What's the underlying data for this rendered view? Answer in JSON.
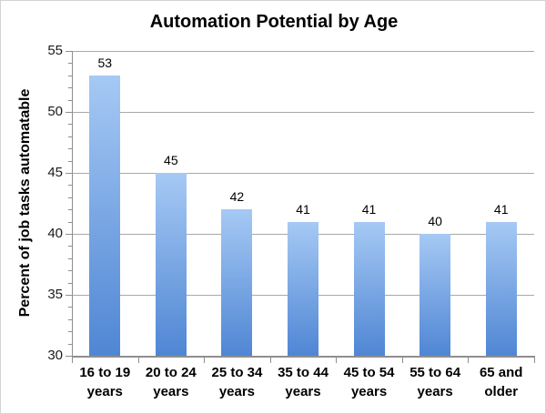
{
  "chart_data": {
    "type": "bar",
    "title": "Automation Potential by Age",
    "xlabel": "",
    "ylabel": "Percent of job tasks automatable",
    "categories": [
      "16 to 19 years",
      "20 to 24 years",
      "25 to 34 years",
      "35 to 44 years",
      "45 to 54 years",
      "55 to 64 years",
      "65 and older"
    ],
    "values": [
      53,
      45,
      42,
      41,
      41,
      40,
      41
    ],
    "ylim": [
      30,
      55
    ],
    "yticks": [
      30,
      35,
      40,
      45,
      50,
      55
    ],
    "minor_tick_unit": 1,
    "grid": true,
    "legend": "none",
    "colors": {
      "bar_top": "#a6c9f4",
      "bar_bottom": "#4f86d4",
      "gridline": "#a8a8a8",
      "axis": "#8e8e8e",
      "text": "#000000"
    }
  }
}
